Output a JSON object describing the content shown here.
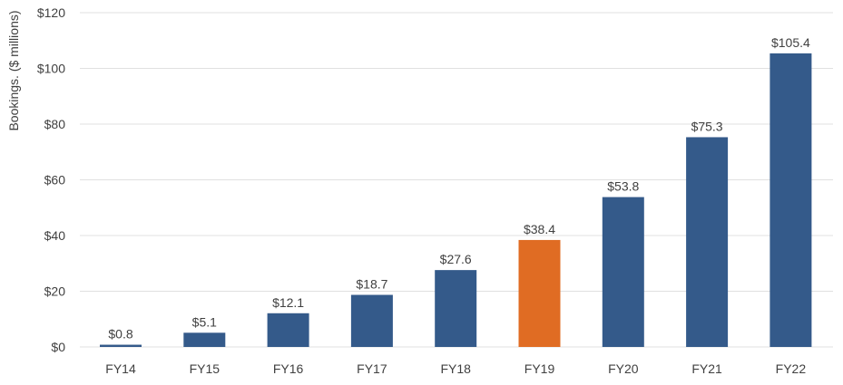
{
  "chart_data": {
    "type": "bar",
    "title": "",
    "xlabel": "",
    "ylabel": "Bookings. ($ millions)",
    "categories": [
      "FY14",
      "FY15",
      "FY16",
      "FY17",
      "FY18",
      "FY19",
      "FY20",
      "FY21",
      "FY22"
    ],
    "values": [
      0.8,
      5.1,
      12.1,
      18.7,
      27.6,
      38.4,
      53.8,
      75.3,
      105.4
    ],
    "data_labels": [
      "$0.8",
      "$5.1",
      "$12.1",
      "$18.7",
      "$27.6",
      "$38.4",
      "$53.8",
      "$75.3",
      "$105.4"
    ],
    "ylim": [
      0,
      120
    ],
    "yticks": [
      0,
      20,
      40,
      60,
      80,
      100,
      120
    ],
    "ytick_labels": [
      "$0",
      "$20",
      "$40",
      "$60",
      "$80",
      "$100",
      "$120"
    ],
    "grid": true,
    "legend": "none",
    "colors": {
      "default": "#345a8a",
      "highlight": "#e06c23",
      "grid": "#e0e0e0"
    },
    "highlight_category": "FY19"
  }
}
